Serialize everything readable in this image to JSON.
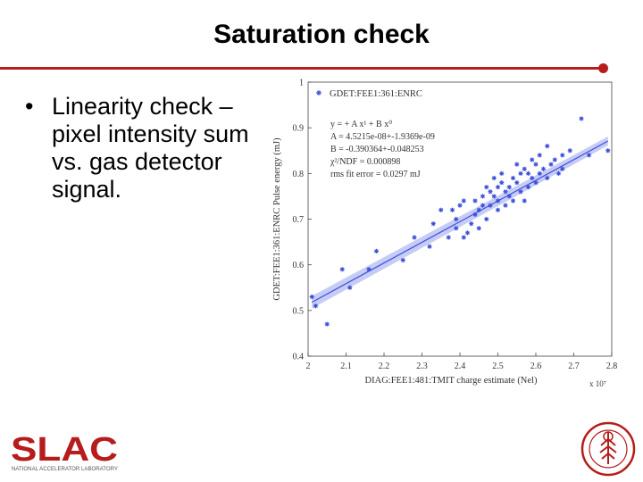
{
  "slide": {
    "title": "Saturation check",
    "bullet_symbol": "•",
    "bullet_text": "Linearity check – pixel intensity sum vs. gas detector signal."
  },
  "colors": {
    "accent": "#b71c1c",
    "series": "#3b4fd8",
    "band": "#aeb6f2"
  },
  "logos": {
    "left": "SLAC",
    "left_sub": "NATIONAL ACCELERATOR LABORATORY",
    "right": "stanford-seal"
  },
  "chart_data": {
    "type": "scatter",
    "legend": "GDET:FEE1:361:ENRC",
    "legend_position": "top-left",
    "annotations": [
      "y = + A x¹ + B x⁰",
      "A = 4.5215e-08+-1.9369e-09",
      "B = -0.390364+-0.048253",
      "χ²/NDF = 0.000898",
      "rms fit error = 0.0297 mJ"
    ],
    "xlabel": "DIAG:FEE1:481:TMIT charge estimate (Nel)",
    "ylabel": "GDET:FEE1:361:ENRC Pulse energy (mJ)",
    "x_multiplier": "x 10⁷",
    "xlim": [
      2.0,
      2.8
    ],
    "ylim": [
      0.4,
      1.0
    ],
    "xticks": [
      2.0,
      2.1,
      2.2,
      2.3,
      2.4,
      2.5,
      2.6,
      2.7,
      2.8
    ],
    "yticks": [
      0.4,
      0.5,
      0.6,
      0.7,
      0.8,
      0.9,
      1.0
    ],
    "xtick_labels": [
      "2",
      "2.1",
      "2.2",
      "2.3",
      "2.4",
      "2.5",
      "2.6",
      "2.7",
      "2.8"
    ],
    "ytick_labels": [
      "0.4",
      "0.5",
      "0.6",
      "0.7",
      "0.8",
      "0.9",
      "1"
    ],
    "fit": {
      "x": [
        2.01,
        2.79
      ],
      "y": [
        0.518,
        0.871
      ]
    },
    "points": [
      [
        2.01,
        0.53
      ],
      [
        2.02,
        0.51
      ],
      [
        2.05,
        0.47
      ],
      [
        2.09,
        0.59
      ],
      [
        2.11,
        0.55
      ],
      [
        2.16,
        0.59
      ],
      [
        2.18,
        0.63
      ],
      [
        2.25,
        0.61
      ],
      [
        2.28,
        0.66
      ],
      [
        2.32,
        0.64
      ],
      [
        2.33,
        0.69
      ],
      [
        2.35,
        0.72
      ],
      [
        2.37,
        0.66
      ],
      [
        2.38,
        0.72
      ],
      [
        2.39,
        0.7
      ],
      [
        2.39,
        0.68
      ],
      [
        2.4,
        0.73
      ],
      [
        2.41,
        0.66
      ],
      [
        2.41,
        0.74
      ],
      [
        2.42,
        0.67
      ],
      [
        2.43,
        0.69
      ],
      [
        2.44,
        0.71
      ],
      [
        2.44,
        0.74
      ],
      [
        2.45,
        0.72
      ],
      [
        2.45,
        0.68
      ],
      [
        2.46,
        0.75
      ],
      [
        2.46,
        0.73
      ],
      [
        2.47,
        0.7
      ],
      [
        2.47,
        0.77
      ],
      [
        2.48,
        0.76
      ],
      [
        2.48,
        0.73
      ],
      [
        2.49,
        0.75
      ],
      [
        2.49,
        0.79
      ],
      [
        2.5,
        0.74
      ],
      [
        2.5,
        0.72
      ],
      [
        2.5,
        0.77
      ],
      [
        2.51,
        0.78
      ],
      [
        2.51,
        0.8
      ],
      [
        2.52,
        0.76
      ],
      [
        2.52,
        0.73
      ],
      [
        2.53,
        0.75
      ],
      [
        2.53,
        0.77
      ],
      [
        2.54,
        0.79
      ],
      [
        2.54,
        0.74
      ],
      [
        2.55,
        0.82
      ],
      [
        2.55,
        0.78
      ],
      [
        2.56,
        0.76
      ],
      [
        2.56,
        0.8
      ],
      [
        2.57,
        0.74
      ],
      [
        2.57,
        0.81
      ],
      [
        2.58,
        0.77
      ],
      [
        2.58,
        0.8
      ],
      [
        2.59,
        0.83
      ],
      [
        2.59,
        0.79
      ],
      [
        2.6,
        0.82
      ],
      [
        2.6,
        0.78
      ],
      [
        2.61,
        0.84
      ],
      [
        2.61,
        0.8
      ],
      [
        2.62,
        0.81
      ],
      [
        2.63,
        0.79
      ],
      [
        2.63,
        0.86
      ],
      [
        2.64,
        0.82
      ],
      [
        2.65,
        0.83
      ],
      [
        2.66,
        0.8
      ],
      [
        2.67,
        0.84
      ],
      [
        2.67,
        0.81
      ],
      [
        2.69,
        0.85
      ],
      [
        2.72,
        0.92
      ],
      [
        2.74,
        0.84
      ],
      [
        2.79,
        0.85
      ]
    ]
  }
}
